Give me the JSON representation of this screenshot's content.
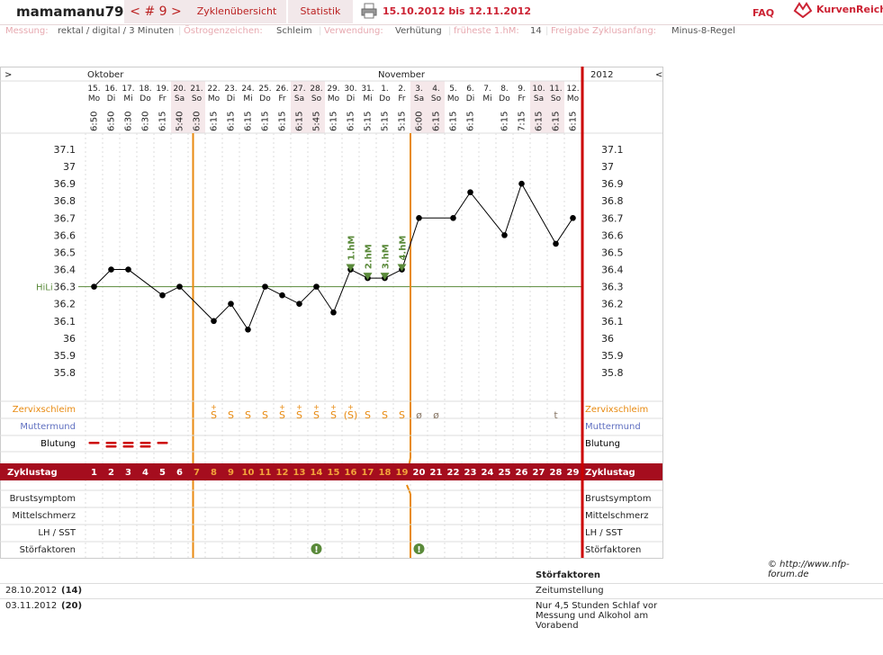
{
  "header": {
    "username": "mamamanu79",
    "cycle_nav": "< # 9 >",
    "tabs": [
      "Zyklenübersicht",
      "Statistik"
    ],
    "date_range": "15.10.2012 bis 12.11.2012",
    "faq": "FAQ",
    "logo_text": "KurvenReich"
  },
  "info": {
    "messung_label": "Messung:",
    "messung_value": "rektal / digital / 3 Minuten",
    "oestrogen_label": "Östrogenzeichen:",
    "oestrogen_value": "Schleim",
    "verwendung_label": "Verwendung:",
    "verwendung_value": "Verhütung",
    "hm_label": "früheste 1.hM:",
    "hm_value": "14",
    "freigabe_label": "Freigabe Zyklusanfang:",
    "freigabe_value": "Minus-8-Regel"
  },
  "chart_data": {
    "type": "line",
    "left_nav": ">",
    "right_nav": "<",
    "months": [
      {
        "label": "Oktober",
        "start_index": 0
      },
      {
        "label": "November",
        "start_index": 17
      }
    ],
    "year_label": "2012",
    "days": [
      {
        "d": "15.",
        "wd": "Mo",
        "t": "6:50",
        "we": false
      },
      {
        "d": "16.",
        "wd": "Di",
        "t": "6:50",
        "we": false
      },
      {
        "d": "17.",
        "wd": "Mi",
        "t": "6:30",
        "we": false
      },
      {
        "d": "18.",
        "wd": "Do",
        "t": "6:30",
        "we": false
      },
      {
        "d": "19.",
        "wd": "Fr",
        "t": "6:15",
        "we": false
      },
      {
        "d": "20.",
        "wd": "Sa",
        "t": "5:40",
        "we": true
      },
      {
        "d": "21.",
        "wd": "So",
        "t": "6:30",
        "we": true
      },
      {
        "d": "22.",
        "wd": "Mo",
        "t": "6:15",
        "we": false
      },
      {
        "d": "23.",
        "wd": "Di",
        "t": "6:15",
        "we": false
      },
      {
        "d": "24.",
        "wd": "Mi",
        "t": "6:15",
        "we": false
      },
      {
        "d": "25.",
        "wd": "Do",
        "t": "6:15",
        "we": false
      },
      {
        "d": "26.",
        "wd": "Fr",
        "t": "6:15",
        "we": false
      },
      {
        "d": "27.",
        "wd": "Sa",
        "t": "6:15",
        "we": true
      },
      {
        "d": "28.",
        "wd": "So",
        "t": "5:45",
        "we": true
      },
      {
        "d": "29.",
        "wd": "Mo",
        "t": "6:15",
        "we": false
      },
      {
        "d": "30.",
        "wd": "Di",
        "t": "6:15",
        "we": false
      },
      {
        "d": "31.",
        "wd": "Mi",
        "t": "5:15",
        "we": false
      },
      {
        "d": "1.",
        "wd": "Do",
        "t": "5:15",
        "we": false
      },
      {
        "d": "2.",
        "wd": "Fr",
        "t": "5:15",
        "we": false
      },
      {
        "d": "3.",
        "wd": "Sa",
        "t": "6:00",
        "we": true
      },
      {
        "d": "4.",
        "wd": "So",
        "t": "6:15",
        "we": true
      },
      {
        "d": "5.",
        "wd": "Mo",
        "t": "6:15",
        "we": false
      },
      {
        "d": "6.",
        "wd": "Di",
        "t": "6:15",
        "we": false
      },
      {
        "d": "7.",
        "wd": "Mi",
        "t": "",
        "we": false
      },
      {
        "d": "8.",
        "wd": "Do",
        "t": "6:15",
        "we": false
      },
      {
        "d": "9.",
        "wd": "Fr",
        "t": "7:15",
        "we": false
      },
      {
        "d": "10.",
        "wd": "Sa",
        "t": "6:15",
        "we": true
      },
      {
        "d": "11.",
        "wd": "So",
        "t": "6:15",
        "we": true
      },
      {
        "d": "12.",
        "wd": "Mo",
        "t": "6:15",
        "we": false
      }
    ],
    "temps": [
      36.3,
      36.4,
      36.4,
      null,
      36.25,
      36.3,
      null,
      36.1,
      36.2,
      36.05,
      36.3,
      36.25,
      36.2,
      36.3,
      36.15,
      36.4,
      36.35,
      36.35,
      36.4,
      36.7,
      null,
      36.7,
      36.85,
      null,
      36.6,
      36.9,
      null,
      36.55,
      36.7
    ],
    "y_ticks": [
      "37.1",
      "37",
      "36.9",
      "36.8",
      "36.7",
      "36.6",
      "36.5",
      "36.4",
      "36.3",
      "36.2",
      "36.1",
      "36",
      "35.9",
      "35.8"
    ],
    "ylim": [
      35.8,
      37.1
    ],
    "hilo": {
      "label": "HiLi",
      "value": 36.3
    },
    "hm_markers": [
      {
        "index": 15,
        "label": "1.hM"
      },
      {
        "index": 16,
        "label": "2.hM"
      },
      {
        "index": 17,
        "label": "3.hM"
      },
      {
        "index": 18,
        "label": "4.hM"
      }
    ],
    "cycle_start_index": 6,
    "cycle_end_index": 19,
    "row_labels": {
      "zervix": "Zervixschleim",
      "muttermund": "Muttermund",
      "blutung": "Blutung",
      "zyklustag": "Zyklustag",
      "brust": "Brustsymptom",
      "mittel": "Mittelschmerz",
      "lh": "LH / SST",
      "stoer": "Störfaktoren"
    },
    "zervix": [
      "",
      "",
      "",
      "",
      "",
      "",
      "",
      "S+",
      "S",
      "S",
      "S",
      "S+",
      "S+",
      "S+",
      "S+",
      "(S+)",
      "S",
      "S",
      "S",
      "ø",
      "ø",
      "",
      "",
      "",
      "",
      "",
      "",
      "t",
      ""
    ],
    "blutung": [
      1,
      2,
      2,
      2,
      1,
      0,
      0,
      0,
      0,
      0,
      0,
      0,
      0,
      0,
      0,
      0,
      0,
      0,
      0,
      0,
      0,
      0,
      0,
      0,
      0,
      0,
      0,
      0,
      0
    ],
    "stoer": [
      13,
      19
    ],
    "cycle_days": [
      "1",
      "2",
      "3",
      "4",
      "5",
      "6",
      "7",
      "8",
      "9",
      "10",
      "11",
      "12",
      "13",
      "14",
      "15",
      "16",
      "17",
      "18",
      "19",
      "20",
      "21",
      "22",
      "23",
      "24",
      "25",
      "26",
      "27",
      "28",
      "29"
    ],
    "colors": {
      "accent": "#a50d1e",
      "orange": "#e88a10",
      "green": "#5a8a3a",
      "blue": "#5f6fc0",
      "weekend": "#f5e8ea"
    }
  },
  "notes": {
    "header": "Störfaktoren",
    "copyright": "© http://www.nfp-forum.de",
    "rows": [
      {
        "date": "28.10.2012",
        "day": "(14)",
        "text": "Zeitumstellung"
      },
      {
        "date": "03.11.2012",
        "day": "(20)",
        "text": "Nur 4,5 Stunden Schlaf vor Messung und Alkohol am Vorabend"
      }
    ]
  }
}
